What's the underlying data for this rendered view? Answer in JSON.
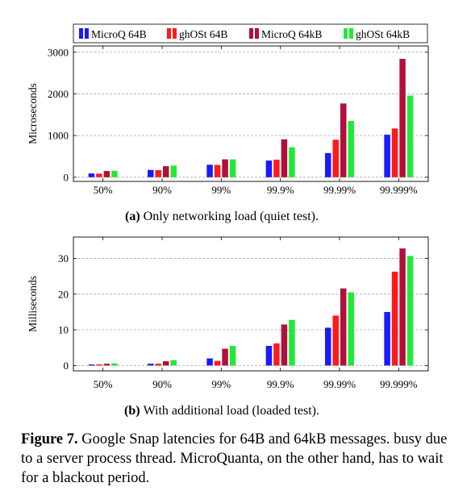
{
  "legend": [
    {
      "label": "MicroQ 64B",
      "color": "#1a1aff"
    },
    {
      "label": "ghOSt 64B",
      "color": "#ff1a1a"
    },
    {
      "label": "MicroQ 64kB",
      "color": "#b0103a"
    },
    {
      "label": "ghOSt 64kB",
      "color": "#22e83a"
    }
  ],
  "chart_data": [
    {
      "type": "bar",
      "categories": [
        "50%",
        "90%",
        "99%",
        "99.9%",
        "99.99%",
        "99.999%"
      ],
      "series": [
        {
          "name": "MicroQ 64B",
          "values": [
            90,
            175,
            300,
            400,
            580,
            1020
          ]
        },
        {
          "name": "ghOSt 64B",
          "values": [
            85,
            170,
            295,
            420,
            900,
            1170
          ]
        },
        {
          "name": "MicroQ 64kB",
          "values": [
            150,
            265,
            430,
            910,
            1770,
            2840
          ]
        },
        {
          "name": "ghOSt 64kB",
          "values": [
            155,
            280,
            430,
            720,
            1350,
            1960
          ]
        }
      ],
      "ylabel": "Microseconds",
      "yticks": [
        0,
        1000,
        2000,
        3000
      ],
      "ylim": [
        -100,
        3150
      ],
      "grid": "horizontal dashed",
      "legend_position": "top",
      "caption_label": "(a)",
      "caption_text": "Only networking load (quiet test)."
    },
    {
      "type": "bar",
      "categories": [
        "50%",
        "90%",
        "99%",
        "99.9%",
        "99.99%",
        "99.999%"
      ],
      "series": [
        {
          "name": "MicroQ 64B",
          "values": [
            0.3,
            0.5,
            2.0,
            5.5,
            10.6,
            15.0
          ]
        },
        {
          "name": "ghOSt 64B",
          "values": [
            0.3,
            0.5,
            1.3,
            6.2,
            14.0,
            26.3
          ]
        },
        {
          "name": "MicroQ 64kB",
          "values": [
            0.5,
            1.2,
            4.7,
            11.5,
            21.6,
            32.8
          ]
        },
        {
          "name": "ghOSt 64kB",
          "values": [
            0.6,
            1.5,
            5.5,
            12.8,
            20.5,
            30.7
          ]
        }
      ],
      "ylabel": "Milliseconds",
      "yticks": [
        0,
        10,
        20,
        30
      ],
      "ylim": [
        -1.5,
        36
      ],
      "grid": "horizontal dashed",
      "caption_label": "(b)",
      "caption_text": "With additional load (loaded test)."
    }
  ],
  "figure_caption": {
    "label": "Figure 7.",
    "text": "Google Snap latencies for 64B and 64kB messages.",
    "continuation": "busy due to a server process thread. MicroQuanta, on the other hand, has to wait for a blackout period."
  }
}
